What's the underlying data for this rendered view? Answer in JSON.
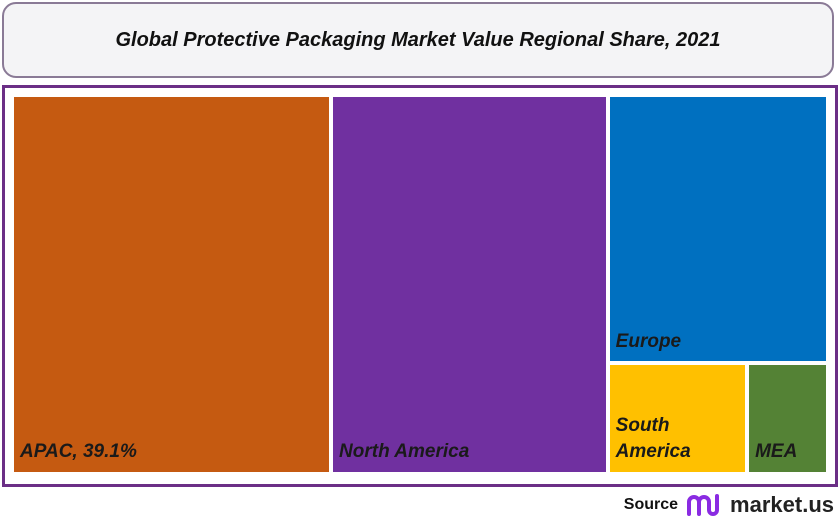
{
  "chart_data": {
    "type": "treemap",
    "title": "Global Protective Packaging Market Value Regional Share, 2021",
    "categories": [
      "APAC",
      "North America",
      "Europe",
      "South America",
      "MEA"
    ],
    "values": [
      39.1,
      33.9,
      19.1,
      5.0,
      2.9
    ],
    "value_labels": [
      "APAC, 39.1%",
      null,
      null,
      null,
      null
    ],
    "colors": [
      "#c55a11",
      "#7030a0",
      "#0070c0",
      "#ffc000",
      "#548235"
    ]
  },
  "footer": {
    "source": "Source",
    "brand": "market.us"
  }
}
